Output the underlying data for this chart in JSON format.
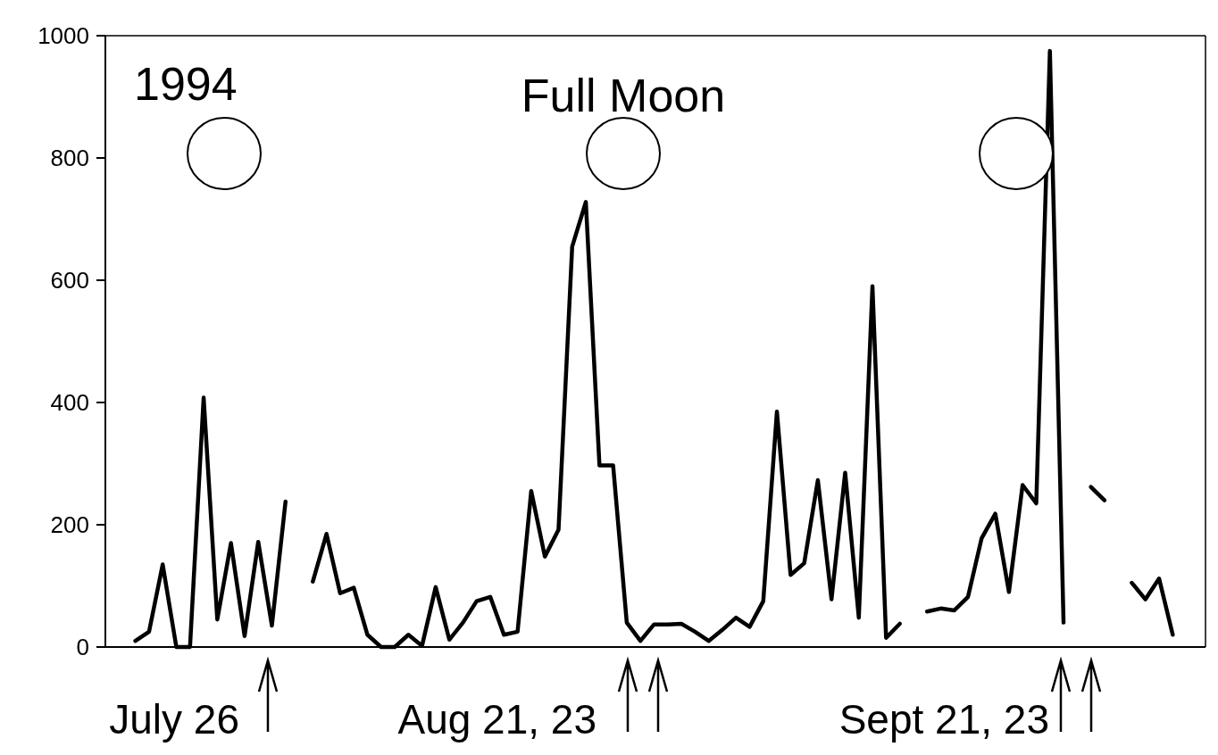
{
  "chart_data": {
    "type": "line",
    "categories": [
      null,
      null,
      null,
      null,
      null,
      null,
      null,
      null,
      null,
      null,
      null,
      null,
      null,
      null,
      null,
      null,
      null,
      null,
      null,
      null,
      null,
      null,
      null,
      null,
      null,
      null,
      null,
      null,
      null,
      null,
      null,
      null,
      null,
      null,
      null,
      null,
      null,
      null,
      null,
      null,
      null,
      null,
      null,
      null,
      null,
      null,
      null,
      null,
      null,
      null,
      null,
      null,
      null,
      null,
      null,
      null,
      null,
      null,
      null,
      null,
      null,
      null,
      null,
      null,
      null,
      null,
      null,
      null,
      null,
      null,
      null,
      null,
      null,
      null,
      null,
      null,
      null
    ],
    "series": [
      {
        "color": "#000000",
        "values": [
          10,
          25,
          135,
          0,
          0,
          408,
          45,
          170,
          18,
          172,
          35,
          238,
          null,
          null,
          null,
          null,
          null,
          null,
          null,
          null,
          null,
          null,
          null,
          null,
          null,
          null,
          null,
          null,
          null,
          null,
          null,
          null,
          null,
          null,
          null,
          null,
          null,
          null,
          null,
          null,
          null,
          null,
          null,
          null,
          null,
          null,
          null,
          null,
          null,
          null,
          null,
          null,
          null,
          null,
          null,
          null,
          null,
          null,
          null,
          null,
          null,
          null,
          null,
          null,
          null,
          null,
          null,
          null,
          null,
          null,
          null,
          null,
          null,
          null,
          null,
          null,
          null
        ]
      },
      {
        "color": "#000000",
        "values": [
          null,
          null,
          null,
          null,
          null,
          null,
          null,
          null,
          null,
          null,
          null,
          null,
          null,
          107,
          185,
          88,
          97,
          20,
          0,
          0,
          20,
          2,
          98,
          12,
          40,
          75,
          82,
          20,
          25,
          255,
          148,
          192,
          655,
          728,
          297,
          297,
          40,
          10,
          37,
          37,
          38,
          25,
          10,
          28,
          48,
          33,
          75,
          385,
          118,
          137,
          273,
          78,
          285,
          48,
          590,
          15,
          38,
          null,
          null,
          null,
          null,
          null,
          null,
          null,
          null,
          null,
          null,
          null,
          null,
          null,
          null,
          null,
          null,
          null,
          null,
          null,
          null
        ]
      },
      {
        "color": "#000000",
        "values": [
          null,
          null,
          null,
          null,
          null,
          null,
          null,
          null,
          null,
          null,
          null,
          null,
          null,
          null,
          null,
          null,
          null,
          null,
          null,
          null,
          null,
          null,
          null,
          null,
          null,
          null,
          null,
          null,
          null,
          null,
          null,
          null,
          null,
          null,
          null,
          null,
          null,
          null,
          null,
          null,
          null,
          null,
          null,
          null,
          null,
          null,
          null,
          null,
          null,
          null,
          null,
          null,
          null,
          null,
          null,
          null,
          null,
          null,
          58,
          63,
          60,
          82,
          178,
          218,
          90,
          265,
          235,
          975,
          40,
          null,
          null,
          null,
          null,
          null,
          null,
          null,
          null
        ]
      },
      {
        "color": "#000000",
        "values": [
          null,
          null,
          null,
          null,
          null,
          null,
          null,
          null,
          null,
          null,
          null,
          null,
          null,
          null,
          null,
          null,
          null,
          null,
          null,
          null,
          null,
          null,
          null,
          null,
          null,
          null,
          null,
          null,
          null,
          null,
          null,
          null,
          null,
          null,
          null,
          null,
          null,
          null,
          null,
          null,
          null,
          null,
          null,
          null,
          null,
          null,
          null,
          null,
          null,
          null,
          null,
          null,
          null,
          null,
          null,
          null,
          null,
          null,
          null,
          null,
          null,
          null,
          null,
          null,
          null,
          null,
          null,
          null,
          null,
          null,
          262,
          240,
          null,
          null,
          null,
          null,
          null
        ]
      },
      {
        "color": "#000000",
        "values": [
          null,
          null,
          null,
          null,
          null,
          null,
          null,
          null,
          null,
          null,
          null,
          null,
          null,
          null,
          null,
          null,
          null,
          null,
          null,
          null,
          null,
          null,
          null,
          null,
          null,
          null,
          null,
          null,
          null,
          null,
          null,
          null,
          null,
          null,
          null,
          null,
          null,
          null,
          null,
          null,
          null,
          null,
          null,
          null,
          null,
          null,
          null,
          null,
          null,
          null,
          null,
          null,
          null,
          null,
          null,
          null,
          null,
          null,
          null,
          null,
          null,
          null,
          null,
          null,
          null,
          null,
          null,
          null,
          null,
          null,
          null,
          null,
          null,
          105,
          78,
          112,
          20
        ]
      }
    ],
    "ylim": [
      0,
      1000
    ],
    "yticks": [
      0,
      200,
      400,
      600,
      800,
      1000
    ],
    "marker": "none",
    "line_style": "solid",
    "annotations": [
      "1994",
      "Full Moon",
      "July 26",
      "Aug 21, 23",
      "Sept 21, 23"
    ]
  }
}
